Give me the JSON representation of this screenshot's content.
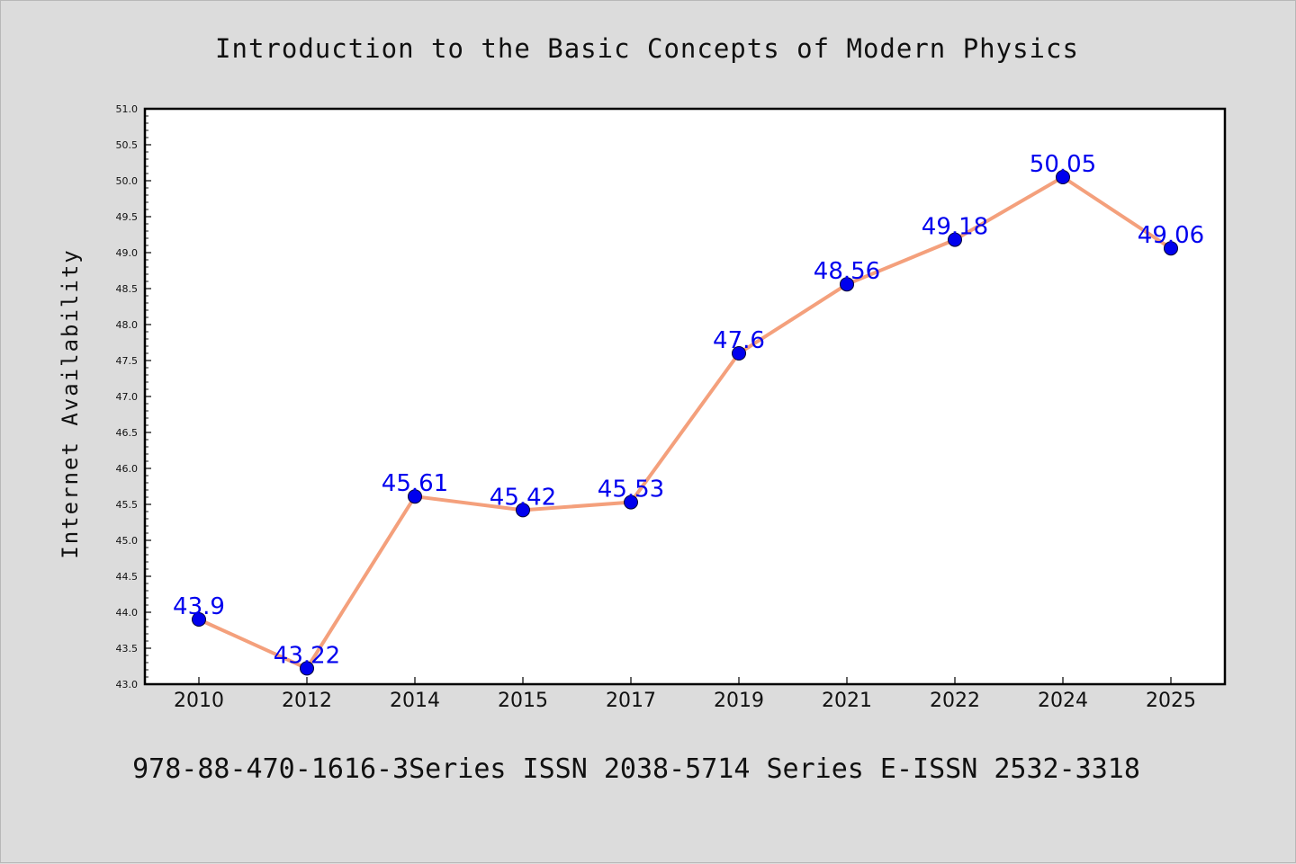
{
  "title": "Introduction to the Basic Concepts of Modern Physics",
  "footer": "978-88-470-1616-3Series ISSN 2038-5714 Series E-ISSN 2532-3318",
  "colors": {
    "background": "#dcdcdc",
    "plot_background": "#ffffff",
    "line": "#f4a07c",
    "marker": "#0000ee",
    "data_label": "#0000ee"
  },
  "chart_data": {
    "type": "line",
    "title": "Introduction to the Basic Concepts of Modern Physics",
    "xlabel": "",
    "ylabel": "Internet Availability",
    "ylim": [
      43.0,
      51.0
    ],
    "yticks": [
      "43.0",
      "43.5",
      "44.0",
      "44.5",
      "45.0",
      "45.5",
      "46.0",
      "46.5",
      "47.0",
      "47.5",
      "48.0",
      "48.5",
      "49.0",
      "49.5",
      "50.0",
      "50.5",
      "51.0"
    ],
    "categories": [
      "2010",
      "2012",
      "2014",
      "2015",
      "2017",
      "2019",
      "2021",
      "2022",
      "2024",
      "2025"
    ],
    "values": [
      43.9,
      43.22,
      45.61,
      45.42,
      45.53,
      47.6,
      48.56,
      49.18,
      50.05,
      49.06
    ],
    "data_labels": [
      "43.9",
      "43.22",
      "45.61",
      "45.42",
      "45.53",
      "47.6",
      "48.56",
      "49.18",
      "50.05",
      "49.06"
    ],
    "grid": false,
    "legend": "none"
  }
}
